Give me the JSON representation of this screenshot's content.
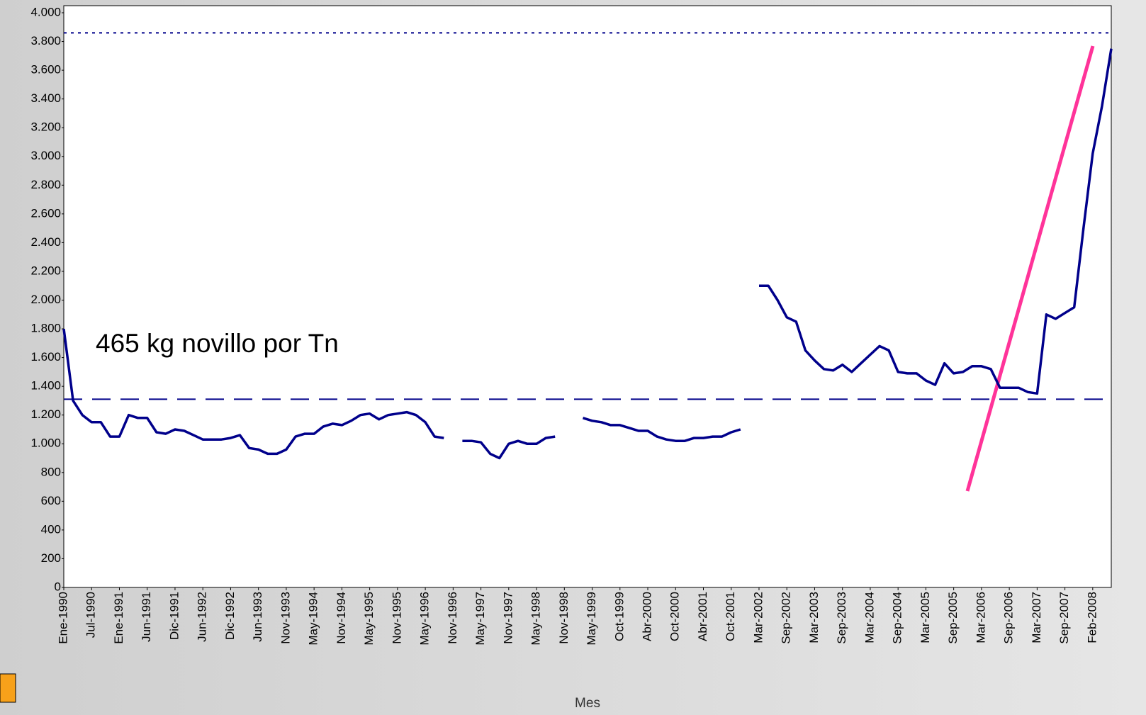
{
  "chart_data": {
    "type": "line",
    "annotation": "465 kg novillo por Tn",
    "x_label": "Mes",
    "categories": [
      "Ene-1990",
      null,
      null,
      "Jul-1990",
      null,
      null,
      "Ene-1991",
      null,
      null,
      "Jun-1991",
      null,
      null,
      "Dic-1991",
      null,
      null,
      "Jun-1992",
      null,
      null,
      "Dic-1992",
      null,
      null,
      "Jun-1993",
      null,
      null,
      "Nov-1993",
      null,
      null,
      "May-1994",
      null,
      null,
      "Nov-1994",
      null,
      null,
      "May-1995",
      null,
      null,
      "Nov-1995",
      null,
      null,
      "May-1996",
      null,
      null,
      "Nov-1996",
      null,
      null,
      "May-1997",
      null,
      null,
      "Nov-1997",
      null,
      null,
      "May-1998",
      null,
      null,
      "Nov-1998",
      null,
      null,
      "May-1999",
      null,
      null,
      "Oct-1999",
      null,
      null,
      "Abr-2000",
      null,
      null,
      "Oct-2000",
      null,
      null,
      "Abr-2001",
      null,
      null,
      "Oct-2001",
      null,
      null,
      "Mar-2002",
      null,
      null,
      "Sep-2002",
      null,
      null,
      "Mar-2003",
      null,
      null,
      "Sep-2003",
      null,
      null,
      "Mar-2004",
      null,
      null,
      "Sep-2004",
      null,
      null,
      "Mar-2005",
      null,
      null,
      "Sep-2005",
      null,
      null,
      "Mar-2006",
      null,
      null,
      "Sep-2006",
      null,
      null,
      "Mar-2007",
      null,
      null,
      "Sep-2007",
      null,
      null,
      "Feb-2008",
      null,
      null
    ],
    "series": [
      {
        "color": "#00008b",
        "values": [
          1800,
          1300,
          1200,
          1150,
          1150,
          1050,
          1050,
          1200,
          1180,
          1180,
          1080,
          1070,
          1100,
          1090,
          1060,
          1030,
          1030,
          1030,
          1040,
          1060,
          970,
          960,
          930,
          930,
          960,
          1050,
          1070,
          1070,
          1120,
          1140,
          1130,
          1160,
          1200,
          1210,
          1170,
          1200,
          1210,
          1220,
          1200,
          1150,
          1050,
          1040,
          null,
          1020,
          1020,
          1010,
          930,
          900,
          1000,
          1020,
          1000,
          1000,
          1040,
          1050,
          null,
          null,
          1180,
          1160,
          1150,
          1130,
          1130,
          1110,
          1090,
          1090,
          1050,
          1030,
          1020,
          1020,
          1040,
          1040,
          1050,
          1050,
          1080,
          1100,
          null,
          2100,
          2100,
          2000,
          1880,
          1850,
          1650,
          1580,
          1520,
          1510,
          1550,
          1500,
          1560,
          1620,
          1680,
          1650,
          1500,
          1490,
          1490,
          1440,
          1410,
          1560,
          1490,
          1500,
          1540,
          1540,
          1520,
          1390,
          1390,
          1390,
          1360,
          1350,
          1900,
          1870,
          1910,
          1950,
          2500,
          3020,
          3350,
          3750
        ]
      }
    ],
    "reference_lines": [
      {
        "value": 3860,
        "style": "dotted",
        "color": "#00008b"
      },
      {
        "value": 1310,
        "style": "dashed",
        "color": "#00008b"
      }
    ],
    "ylim": [
      0,
      4000
    ],
    "yticks": [
      0,
      200,
      400,
      600,
      800,
      {
        "value": 1000,
        "label": "1.000"
      },
      {
        "value": 1200,
        "label": "1.200"
      },
      {
        "value": 1400,
        "label": "1.400"
      },
      {
        "value": 1600,
        "label": "1.600"
      },
      {
        "value": 1800,
        "label": "1.800"
      },
      {
        "value": 2000,
        "label": "2.000"
      },
      {
        "value": 2200,
        "label": "2.200"
      },
      {
        "value": 2400,
        "label": "2.400"
      },
      {
        "value": 2600,
        "label": "2.600"
      },
      {
        "value": 2800,
        "label": "2.800"
      },
      {
        "value": 3000,
        "label": "3.000"
      },
      {
        "value": 3200,
        "label": "3.200"
      },
      {
        "value": 3400,
        "label": "3.400"
      },
      {
        "value": 3600,
        "label": "3.600"
      },
      {
        "value": 3800,
        "label": "3.800"
      },
      {
        "value": 4000,
        "label": "4.000"
      }
    ],
    "grid": false
  }
}
